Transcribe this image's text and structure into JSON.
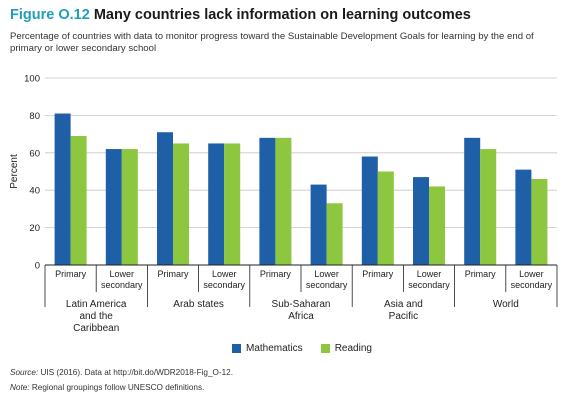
{
  "figure": {
    "label": "Figure O.12",
    "title": "Many countries lack information on learning outcomes",
    "subtitle": "Percentage of countries with data to monitor progress toward the Sustainable Development Goals for learning by the end of primary or lower secondary school"
  },
  "footer": {
    "source_label": "Source:",
    "source_text": "UIS (2016). Data at http://bit.do/WDR2018-Fig_O-12.",
    "note_label": "Note:",
    "note_text": "Regional groupings follow UNESCO definitions."
  },
  "colors": {
    "mathematics": "#1f5fa8",
    "reading": "#8dc63f"
  },
  "chart_data": {
    "type": "bar",
    "ylabel": "Percent",
    "ylim": [
      0,
      100
    ],
    "yticks": [
      0,
      20,
      40,
      60,
      80,
      100
    ],
    "grid": true,
    "legend_position": "bottom-center",
    "groups": [
      {
        "name": [
          "Latin America",
          "and the",
          "Caribbean"
        ],
        "categories": [
          [
            "Primary"
          ],
          [
            "Lower",
            "secondary"
          ]
        ]
      },
      {
        "name": [
          "Arab states"
        ],
        "categories": [
          [
            "Primary"
          ],
          [
            "Lower",
            "secondary"
          ]
        ]
      },
      {
        "name": [
          "Sub-Saharan",
          "Africa"
        ],
        "categories": [
          [
            "Primary"
          ],
          [
            "Lower",
            "secondary"
          ]
        ]
      },
      {
        "name": [
          "Asia and",
          "Pacific"
        ],
        "categories": [
          [
            "Primary"
          ],
          [
            "Lower",
            "secondary"
          ]
        ]
      },
      {
        "name": [
          "World"
        ],
        "categories": [
          [
            "Primary"
          ],
          [
            "Lower",
            "secondary"
          ]
        ]
      }
    ],
    "series": [
      {
        "name": "Mathematics",
        "values": [
          81,
          62,
          71,
          65,
          68,
          43,
          58,
          47,
          68,
          51
        ]
      },
      {
        "name": "Reading",
        "values": [
          69,
          62,
          65,
          65,
          68,
          33,
          50,
          42,
          62,
          46
        ]
      }
    ]
  }
}
